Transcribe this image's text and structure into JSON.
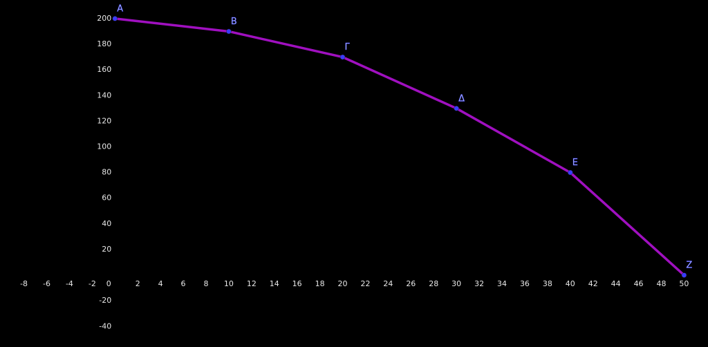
{
  "chart_data": {
    "type": "line",
    "x": [
      0,
      10,
      20,
      30,
      40,
      50
    ],
    "series": [
      {
        "color": "#a010c0",
        "values": [
          200,
          190,
          170,
          130,
          80,
          0
        ]
      }
    ],
    "point_labels": [
      "A",
      "B",
      "Γ",
      "Δ",
      "E",
      "Z"
    ],
    "point_color": "#3a3aff",
    "xlim": [
      -10.1,
      52.1
    ],
    "ylim": [
      -56,
      214.5
    ],
    "xticks": [
      -8,
      -6,
      -4,
      -2,
      0,
      2,
      4,
      6,
      8,
      10,
      12,
      14,
      16,
      18,
      20,
      22,
      24,
      26,
      28,
      30,
      32,
      34,
      36,
      38,
      40,
      42,
      44,
      46,
      48,
      50
    ],
    "yticks": [
      -40,
      -20,
      20,
      40,
      60,
      80,
      100,
      120,
      140,
      160,
      180,
      200
    ],
    "grid": false
  }
}
